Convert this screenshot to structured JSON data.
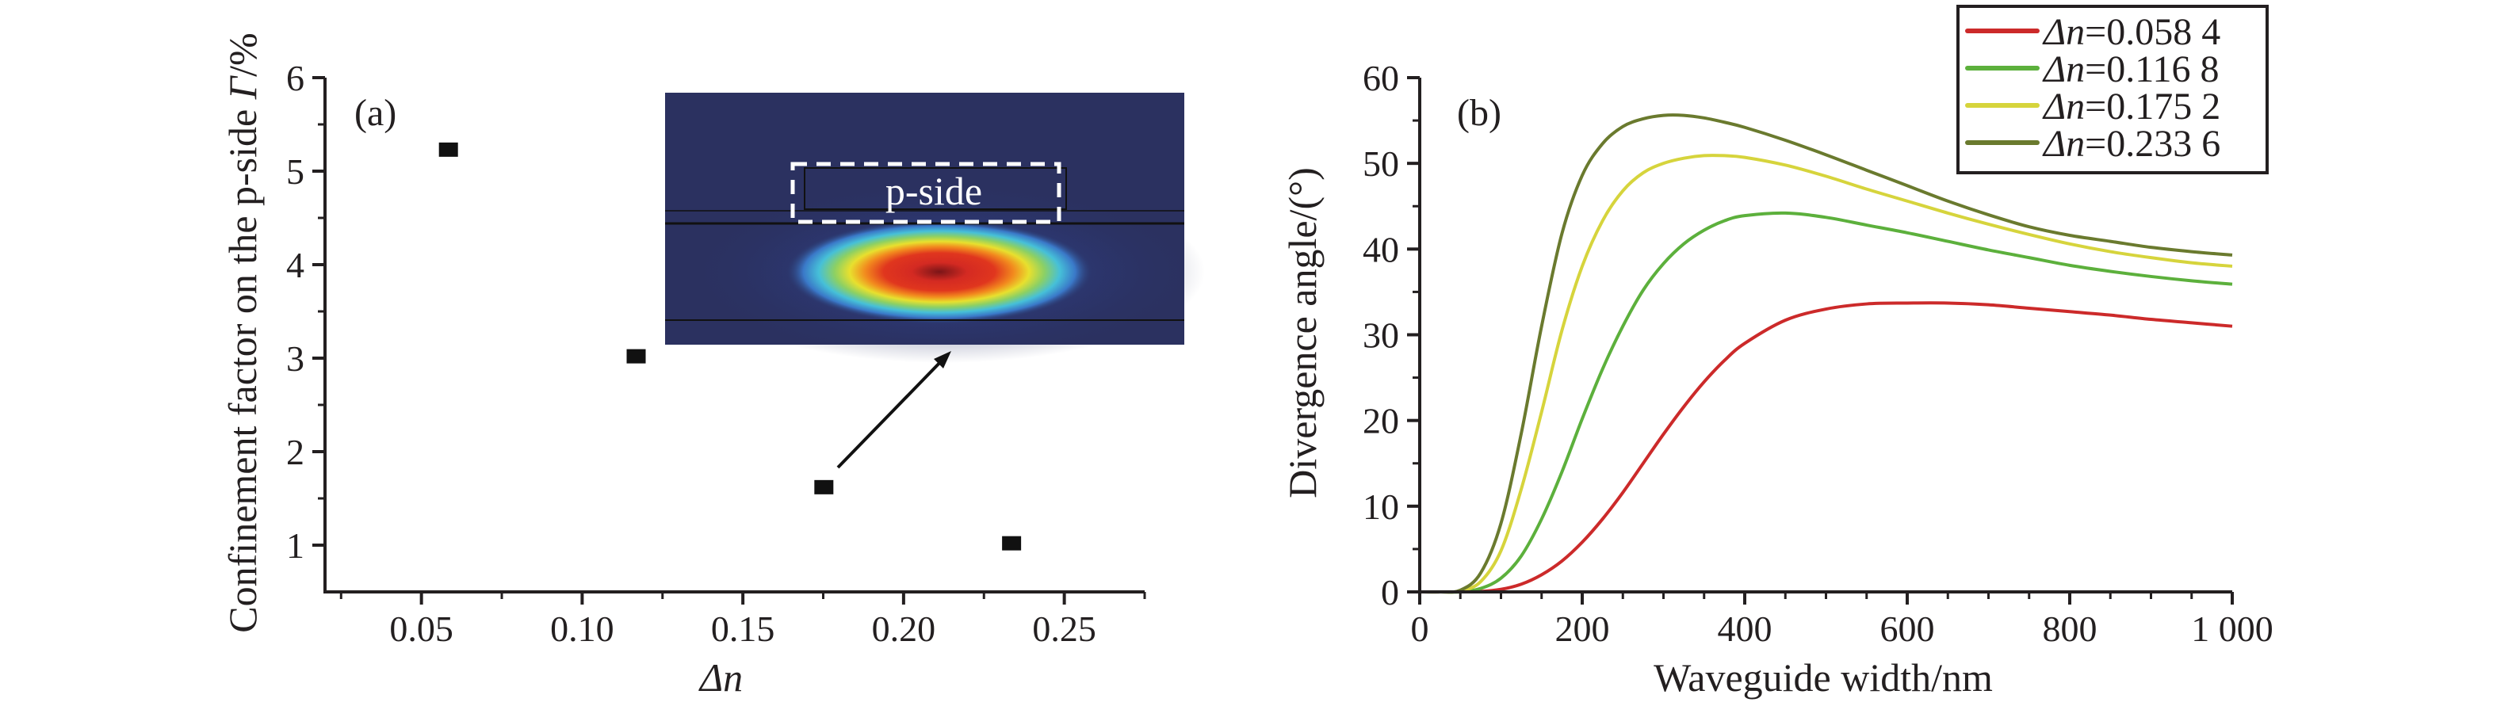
{
  "chart_data": [
    {
      "id": "a",
      "type": "scatter",
      "panel_label": "(a)",
      "title": "",
      "xlabel_italic": "Δn",
      "xlabel": "Δn",
      "ylabel": "Confinement factor on the p-side Γ/%",
      "ylabel_main": "Confinement factor on the p-side ",
      "ylabel_italic": "Γ",
      "ylabel_suffix": "/%",
      "xlim": [
        0.02,
        0.275
      ],
      "ylim": [
        0.5,
        6
      ],
      "xticks": [
        0.05,
        0.1,
        0.15,
        0.2,
        0.25
      ],
      "xtick_labels": [
        "0.05",
        "0.10",
        "0.15",
        "0.20",
        "0.25"
      ],
      "xminor": [
        0.025,
        0.075,
        0.125,
        0.175,
        0.225,
        0.275
      ],
      "yticks": [
        1,
        2,
        3,
        4,
        5,
        6
      ],
      "ytick_labels": [
        "1",
        "2",
        "3",
        "4",
        "5",
        "6"
      ],
      "yminor": [
        1.5,
        2.5,
        3.5,
        4.5,
        5.5
      ],
      "grid": false,
      "marker": "square",
      "marker_color": "#111111",
      "x": [
        0.0584,
        0.1168,
        0.1752,
        0.2336
      ],
      "y": [
        5.23,
        3.02,
        1.62,
        1.02
      ],
      "inset": {
        "description": "mode field intensity map (jet colormap) with p-side region outlined",
        "label": "p-side",
        "background": "#2b3160",
        "arrow_from_point_index": 2
      }
    },
    {
      "id": "b",
      "type": "line",
      "panel_label": "(b)",
      "title": "",
      "xlabel": "Waveguide width/nm",
      "ylabel": "Divergence angle/(°)",
      "ylabel_main": "Divergence angle/(",
      "ylabel_degree": "°",
      "ylabel_suffix": ")",
      "xlim": [
        0,
        1000
      ],
      "ylim": [
        0,
        60
      ],
      "xticks": [
        0,
        200,
        400,
        600,
        800,
        1000
      ],
      "xtick_labels": [
        "0",
        "200",
        "400",
        "600",
        "800",
        "1 000"
      ],
      "xminor": [
        50,
        100,
        150,
        250,
        300,
        350,
        450,
        500,
        550,
        650,
        700,
        750,
        850,
        900,
        950
      ],
      "yticks": [
        0,
        10,
        20,
        30,
        40,
        50,
        60
      ],
      "ytick_labels": [
        "0",
        "10",
        "20",
        "30",
        "40",
        "50",
        "60"
      ],
      "yminor": [
        5,
        15,
        25,
        35,
        45,
        55
      ],
      "grid": false,
      "legend_position": "top-right",
      "x": [
        0,
        25,
        50,
        75,
        100,
        125,
        150,
        175,
        200,
        225,
        250,
        275,
        300,
        325,
        350,
        375,
        400,
        450,
        500,
        550,
        600,
        650,
        700,
        750,
        800,
        850,
        900,
        950,
        1000
      ],
      "series": [
        {
          "name": "Δn=0.058 4",
          "legend_prefix": "Δn",
          "legend_value": "=0.058 4",
          "color": "#cc2a2a",
          "values": [
            0,
            0,
            0,
            0.05,
            0.3,
            0.9,
            2.0,
            3.6,
            5.8,
            8.5,
            11.6,
            15.0,
            18.4,
            21.6,
            24.5,
            27.0,
            29.0,
            31.7,
            33.0,
            33.6,
            33.7,
            33.7,
            33.5,
            33.1,
            32.7,
            32.3,
            31.8,
            31.4,
            31.0
          ]
        },
        {
          "name": "Δn=0.116 8",
          "legend_prefix": "Δn",
          "legend_value": "=0.116 8",
          "color": "#5cb03c",
          "values": [
            0,
            0,
            0,
            0.4,
            1.6,
            4.2,
            8.5,
            14.0,
            20.2,
            26.0,
            31.0,
            35.2,
            38.3,
            40.6,
            42.2,
            43.3,
            43.9,
            44.2,
            43.7,
            42.8,
            41.9,
            40.9,
            39.9,
            39.0,
            38.1,
            37.4,
            36.8,
            36.3,
            35.9
          ]
        },
        {
          "name": "Δn=0.175 2",
          "legend_prefix": "Δn",
          "legend_value": "=0.175 2",
          "color": "#d6d43c",
          "values": [
            0,
            0,
            0.1,
            1.2,
            4.8,
            12.0,
            21.0,
            30.5,
            38.0,
            43.3,
            46.8,
            48.9,
            50.0,
            50.6,
            50.9,
            50.9,
            50.7,
            49.8,
            48.5,
            47.0,
            45.6,
            44.2,
            42.9,
            41.7,
            40.6,
            39.7,
            39.0,
            38.4,
            38.0
          ]
        },
        {
          "name": "Δn=0.233 6",
          "legend_prefix": "Δn",
          "legend_value": "=0.233 6",
          "color": "#6a7a2e",
          "values": [
            0,
            0,
            0.2,
            2.2,
            8.0,
            18.5,
            31.0,
            41.8,
            48.6,
            52.3,
            54.3,
            55.2,
            55.6,
            55.6,
            55.3,
            54.8,
            54.2,
            52.7,
            51.0,
            49.2,
            47.4,
            45.6,
            44.0,
            42.6,
            41.6,
            40.9,
            40.2,
            39.7,
            39.3
          ]
        }
      ]
    }
  ]
}
